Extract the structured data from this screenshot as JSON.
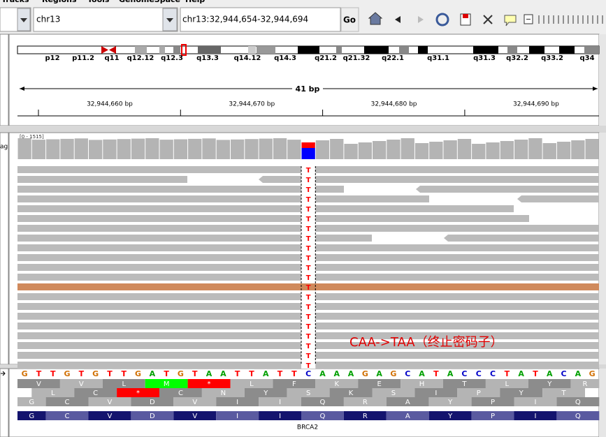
{
  "menu": [
    "Tracks",
    "Regions",
    "Tools",
    "GenomeSpace",
    "Help"
  ],
  "toolbar": {
    "chromosome": "chr13",
    "locus": "chr13:32,944,654-32,944,694",
    "go": "Go"
  },
  "ideogram": {
    "bands": [
      "p12",
      "p11.2",
      "q11",
      "q12.12",
      "q12.3",
      "q13.3",
      "q14.12",
      "q14.3",
      "q21.2",
      "q21.32",
      "q22.1",
      "q31.1",
      "q31.3",
      "q32.2",
      "q33.2",
      "q34"
    ]
  },
  "ruler": {
    "span": "41 bp",
    "ticks": [
      "32,944,660 bp",
      "32,944,670 bp",
      "32,944,680 bp",
      "32,944,690 bp"
    ]
  },
  "tracks": {
    "name_fragment": "ag",
    "coverage_range": "[0 - 1515]"
  },
  "alignment": {
    "mismatch_base": "T"
  },
  "sequence": {
    "bases": [
      "G",
      "T",
      "T",
      "G",
      "T",
      "G",
      "T",
      "T",
      "G",
      "A",
      "T",
      "G",
      "T",
      "A",
      "A",
      "T",
      "T",
      "A",
      "T",
      "T",
      "C",
      "A",
      "A",
      "A",
      "G",
      "A",
      "G",
      "C",
      "A",
      "T",
      "A",
      "C",
      "C",
      "C",
      "T",
      "A",
      "T",
      "A",
      "C",
      "A",
      "G"
    ]
  },
  "translation": {
    "frame_1": [
      "V",
      "V",
      "L",
      "M",
      "*",
      "L",
      "F",
      "K",
      "E",
      "H",
      "T",
      "L",
      "Y",
      "R"
    ],
    "frame_2": [
      "L",
      "C",
      "*",
      "C",
      "N",
      "Y",
      "S",
      "K",
      "S",
      "I",
      "P",
      "Y",
      "T"
    ],
    "frame_3": [
      "G",
      "C",
      "V",
      "D",
      "V",
      "I",
      "I",
      "Q",
      "R",
      "A",
      "Y",
      "P",
      "I",
      "Q"
    ]
  },
  "gene": {
    "name": "BRCA2",
    "amino_acids": [
      "G",
      "C",
      "V",
      "D",
      "V",
      "I",
      "I",
      "Q",
      "R",
      "A",
      "Y",
      "P",
      "I",
      "Q"
    ]
  },
  "annotation": "CAA->TAA（终止密码子）"
}
